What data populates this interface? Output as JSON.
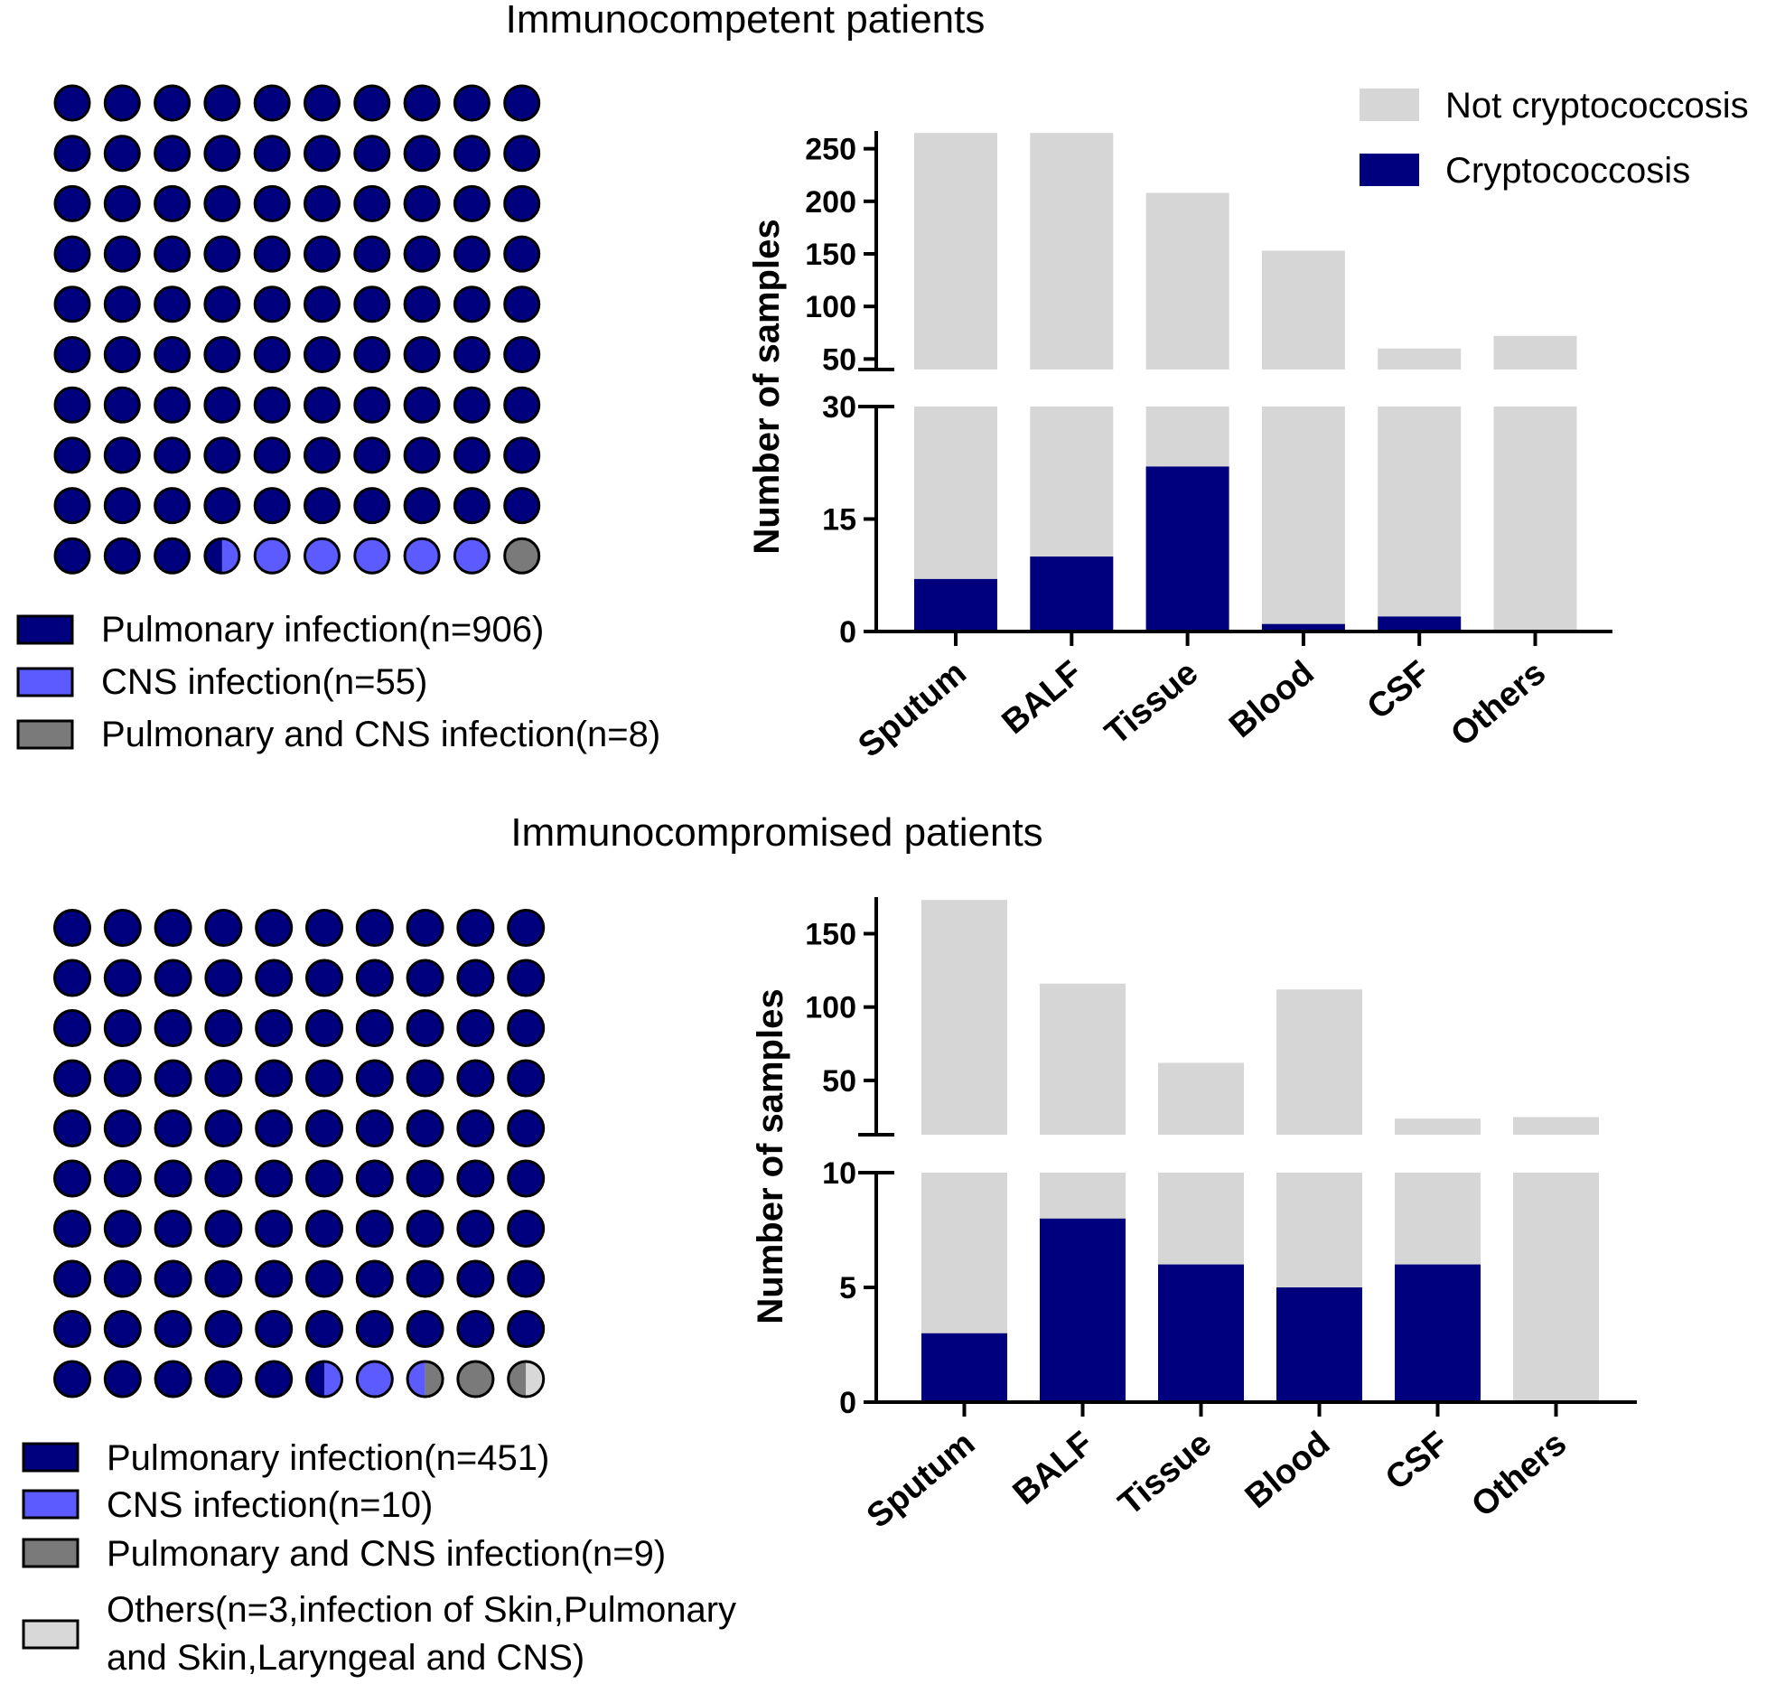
{
  "colors": {
    "pulmonary": "#00007f",
    "cns": "#5b5bff",
    "both": "#7a7a7a",
    "others": "#d8d8d8",
    "not_crypto": "#d6d6d6",
    "crypto": "#00007f"
  },
  "chart_data": [
    {
      "id": "top-waffle",
      "type": "waffle",
      "title": "Immunocompetent patients",
      "grid": [
        10,
        10
      ],
      "last_row": [
        "p",
        "p",
        "p",
        "p/c",
        "c",
        "c",
        "c",
        "c",
        "c",
        "b"
      ],
      "legend": [
        {
          "key": "pulmonary",
          "label": "Pulmonary infection(n=906)"
        },
        {
          "key": "cns",
          "label": "CNS infection(n=55)"
        },
        {
          "key": "both",
          "label": "Pulmonary and CNS infection(n=8)"
        }
      ]
    },
    {
      "id": "top-bar",
      "type": "bar",
      "stacked": true,
      "categories": [
        "Sputum",
        "BALF",
        "Tissue",
        "Blood",
        "CSF",
        "Others"
      ],
      "series": [
        {
          "name": "Not cryptococcosis",
          "key": "not_crypto",
          "values": [
            262,
            260,
            186,
            152,
            58,
            72
          ]
        },
        {
          "name": "Cryptococcosis",
          "key": "crypto",
          "values": [
            7,
            10,
            22,
            1,
            2,
            0
          ]
        }
      ],
      "ylabel": "Number of samples",
      "broken_axis": {
        "lower": {
          "range": [
            0,
            30
          ],
          "ticks": [
            "0",
            "15",
            "30"
          ]
        },
        "upper": {
          "range": [
            40,
            260
          ],
          "ticks": [
            "50",
            "100",
            "150",
            "200",
            "250"
          ]
        }
      },
      "legend_position": "top-right"
    },
    {
      "id": "bottom-waffle",
      "type": "waffle",
      "title": "Immunocompromised patients",
      "grid": [
        10,
        10
      ],
      "last_row": [
        "p",
        "p",
        "p",
        "p",
        "p",
        "p/c",
        "c",
        "c/b",
        "b",
        "b/o"
      ],
      "legend": [
        {
          "key": "pulmonary",
          "label": "Pulmonary infection(n=451)"
        },
        {
          "key": "cns",
          "label": "CNS infection(n=10)"
        },
        {
          "key": "both",
          "label": "Pulmonary  and CNS infection(n=9)"
        },
        {
          "key": "others",
          "label": "Others(n=3,infection of Skin,Pulmonary",
          "label2": "and Skin,Laryngeal and CNS)"
        }
      ]
    },
    {
      "id": "bottom-bar",
      "type": "bar",
      "stacked": true,
      "categories": [
        "Sputum",
        "BALF",
        "Tissue",
        "Blood",
        "CSF",
        "Others"
      ],
      "series": [
        {
          "name": "Not cryptococcosis",
          "key": "not_crypto",
          "values": [
            170,
            108,
            56,
            107,
            18,
            25
          ]
        },
        {
          "name": "Cryptococcosis",
          "key": "crypto",
          "values": [
            3,
            8,
            6,
            5,
            6,
            0
          ]
        }
      ],
      "ylabel": "Number of samples",
      "broken_axis": {
        "lower": {
          "range": [
            0,
            10
          ],
          "ticks": [
            "0",
            "5",
            "10"
          ]
        },
        "upper": {
          "range": [
            13,
            170
          ],
          "ticks": [
            "50",
            "100",
            "150"
          ]
        }
      }
    }
  ]
}
